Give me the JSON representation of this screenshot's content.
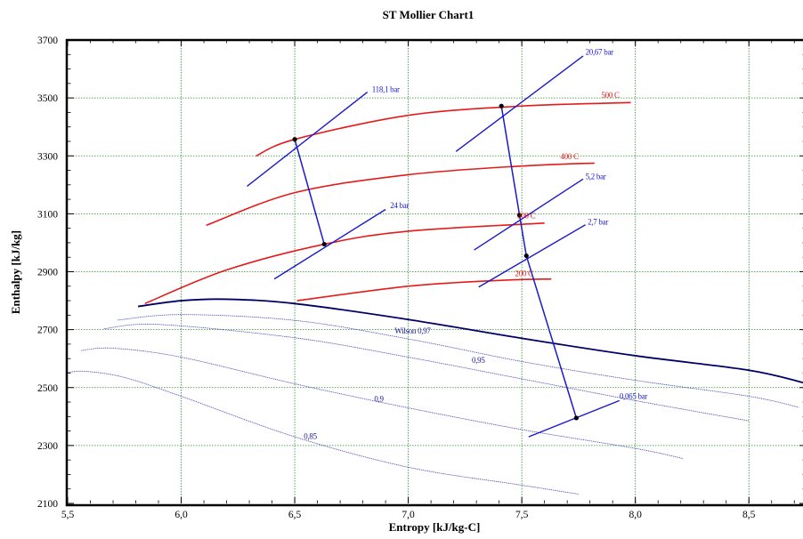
{
  "chart_data": {
    "type": "line",
    "title": "ST Mollier Chart1",
    "xlabel": "Entropy [kJ/kg-C]",
    "ylabel": "Enthalpy [kJ/kg]",
    "xlim": [
      5.5,
      8.75
    ],
    "ylim": [
      2100,
      3700
    ],
    "x_ticks": [
      5.5,
      6.0,
      6.5,
      7.0,
      7.5,
      8.0,
      8.5
    ],
    "x_tick_labels": [
      "5,5",
      "6,0",
      "6,5",
      "7,0",
      "7,5",
      "8,0",
      "8,5"
    ],
    "y_ticks": [
      2100,
      2300,
      2500,
      2700,
      2900,
      3100,
      3300,
      3500,
      3700
    ],
    "y_tick_labels": [
      "2100",
      "2300",
      "2500",
      "2700",
      "2900",
      "3100",
      "3300",
      "3500",
      "3700"
    ],
    "grid": true,
    "colors": {
      "isotherm": "#e51a1a",
      "isobar": "#1a1acc",
      "saturation": "#000066",
      "quality": "#3333aa",
      "grid": "#2e8b2e"
    },
    "isotherms": [
      {
        "label": "500 C",
        "points": [
          [
            6.33,
            3300
          ],
          [
            6.5,
            3357
          ],
          [
            7.0,
            3440
          ],
          [
            7.5,
            3472
          ],
          [
            7.98,
            3484
          ]
        ]
      },
      {
        "label": "400 C",
        "points": [
          [
            6.11,
            3060
          ],
          [
            6.5,
            3173
          ],
          [
            7.0,
            3235
          ],
          [
            7.5,
            3265
          ],
          [
            7.82,
            3275
          ]
        ]
      },
      {
        "label": "300 C",
        "points": [
          [
            5.84,
            2790
          ],
          [
            6.2,
            2906
          ],
          [
            6.63,
            2995
          ],
          [
            7.0,
            3040
          ],
          [
            7.6,
            3068
          ]
        ]
      },
      {
        "label": "200 C",
        "points": [
          [
            6.51,
            2800
          ],
          [
            7.0,
            2850
          ],
          [
            7.4,
            2870
          ],
          [
            7.63,
            2875
          ]
        ]
      }
    ],
    "isobars": [
      {
        "label": "118,1 bar",
        "points": [
          [
            6.29,
            3195
          ],
          [
            6.82,
            3520
          ]
        ]
      },
      {
        "label": "24 bar",
        "points": [
          [
            6.41,
            2875
          ],
          [
            6.9,
            3115
          ]
        ]
      },
      {
        "label": "20,67 bar",
        "points": [
          [
            7.21,
            3315
          ],
          [
            7.77,
            3645
          ]
        ]
      },
      {
        "label": "5,2 bar",
        "points": [
          [
            7.29,
            2975
          ],
          [
            7.77,
            3220
          ]
        ]
      },
      {
        "label": "2,7 bar",
        "points": [
          [
            7.31,
            2847
          ],
          [
            7.78,
            3062
          ]
        ]
      },
      {
        "label": "0,065 bar",
        "points": [
          [
            7.53,
            2330
          ],
          [
            7.93,
            2455
          ]
        ]
      }
    ],
    "saturation_line": [
      [
        5.81,
        2780
      ],
      [
        6.0,
        2800
      ],
      [
        6.2,
        2805
      ],
      [
        6.5,
        2790
      ],
      [
        7.0,
        2735
      ],
      [
        7.5,
        2670
      ],
      [
        8.0,
        2610
      ],
      [
        8.5,
        2560
      ],
      [
        8.75,
        2515
      ]
    ],
    "quality_lines": [
      {
        "label": "Wilson 0,97",
        "points": [
          [
            5.72,
            2733
          ],
          [
            6.0,
            2752
          ],
          [
            6.5,
            2732
          ],
          [
            7.0,
            2668
          ],
          [
            7.5,
            2590
          ],
          [
            8.0,
            2525
          ],
          [
            8.5,
            2470
          ],
          [
            8.72,
            2432
          ]
        ]
      },
      {
        "label": "0,95",
        "points": [
          [
            5.66,
            2703
          ],
          [
            5.9,
            2718
          ],
          [
            6.5,
            2672
          ],
          [
            7.0,
            2605
          ],
          [
            7.5,
            2530
          ],
          [
            8.0,
            2455
          ],
          [
            8.5,
            2385
          ]
        ]
      },
      {
        "label": "0,9",
        "points": [
          [
            5.56,
            2628
          ],
          [
            5.7,
            2636
          ],
          [
            6.0,
            2605
          ],
          [
            6.5,
            2513
          ],
          [
            7.0,
            2430
          ],
          [
            7.5,
            2355
          ],
          [
            8.0,
            2290
          ],
          [
            8.21,
            2255
          ]
        ]
      },
      {
        "label": "0,85",
        "points": [
          [
            5.5,
            2552
          ],
          [
            5.58,
            2556
          ],
          [
            5.75,
            2535
          ],
          [
            6.0,
            2470
          ],
          [
            6.5,
            2330
          ],
          [
            7.0,
            2225
          ],
          [
            7.5,
            2163
          ],
          [
            7.75,
            2132
          ]
        ]
      }
    ],
    "process_path": [
      [
        6.5,
        3357
      ],
      [
        6.63,
        2995
      ],
      [
        7.41,
        3472
      ],
      [
        7.49,
        3095
      ],
      [
        7.52,
        2955
      ],
      [
        7.74,
        2395
      ]
    ],
    "points": [
      [
        6.5,
        3357
      ],
      [
        6.63,
        2995
      ],
      [
        7.41,
        3472
      ],
      [
        7.49,
        3095
      ],
      [
        7.52,
        2955
      ],
      [
        7.74,
        2395
      ]
    ]
  }
}
